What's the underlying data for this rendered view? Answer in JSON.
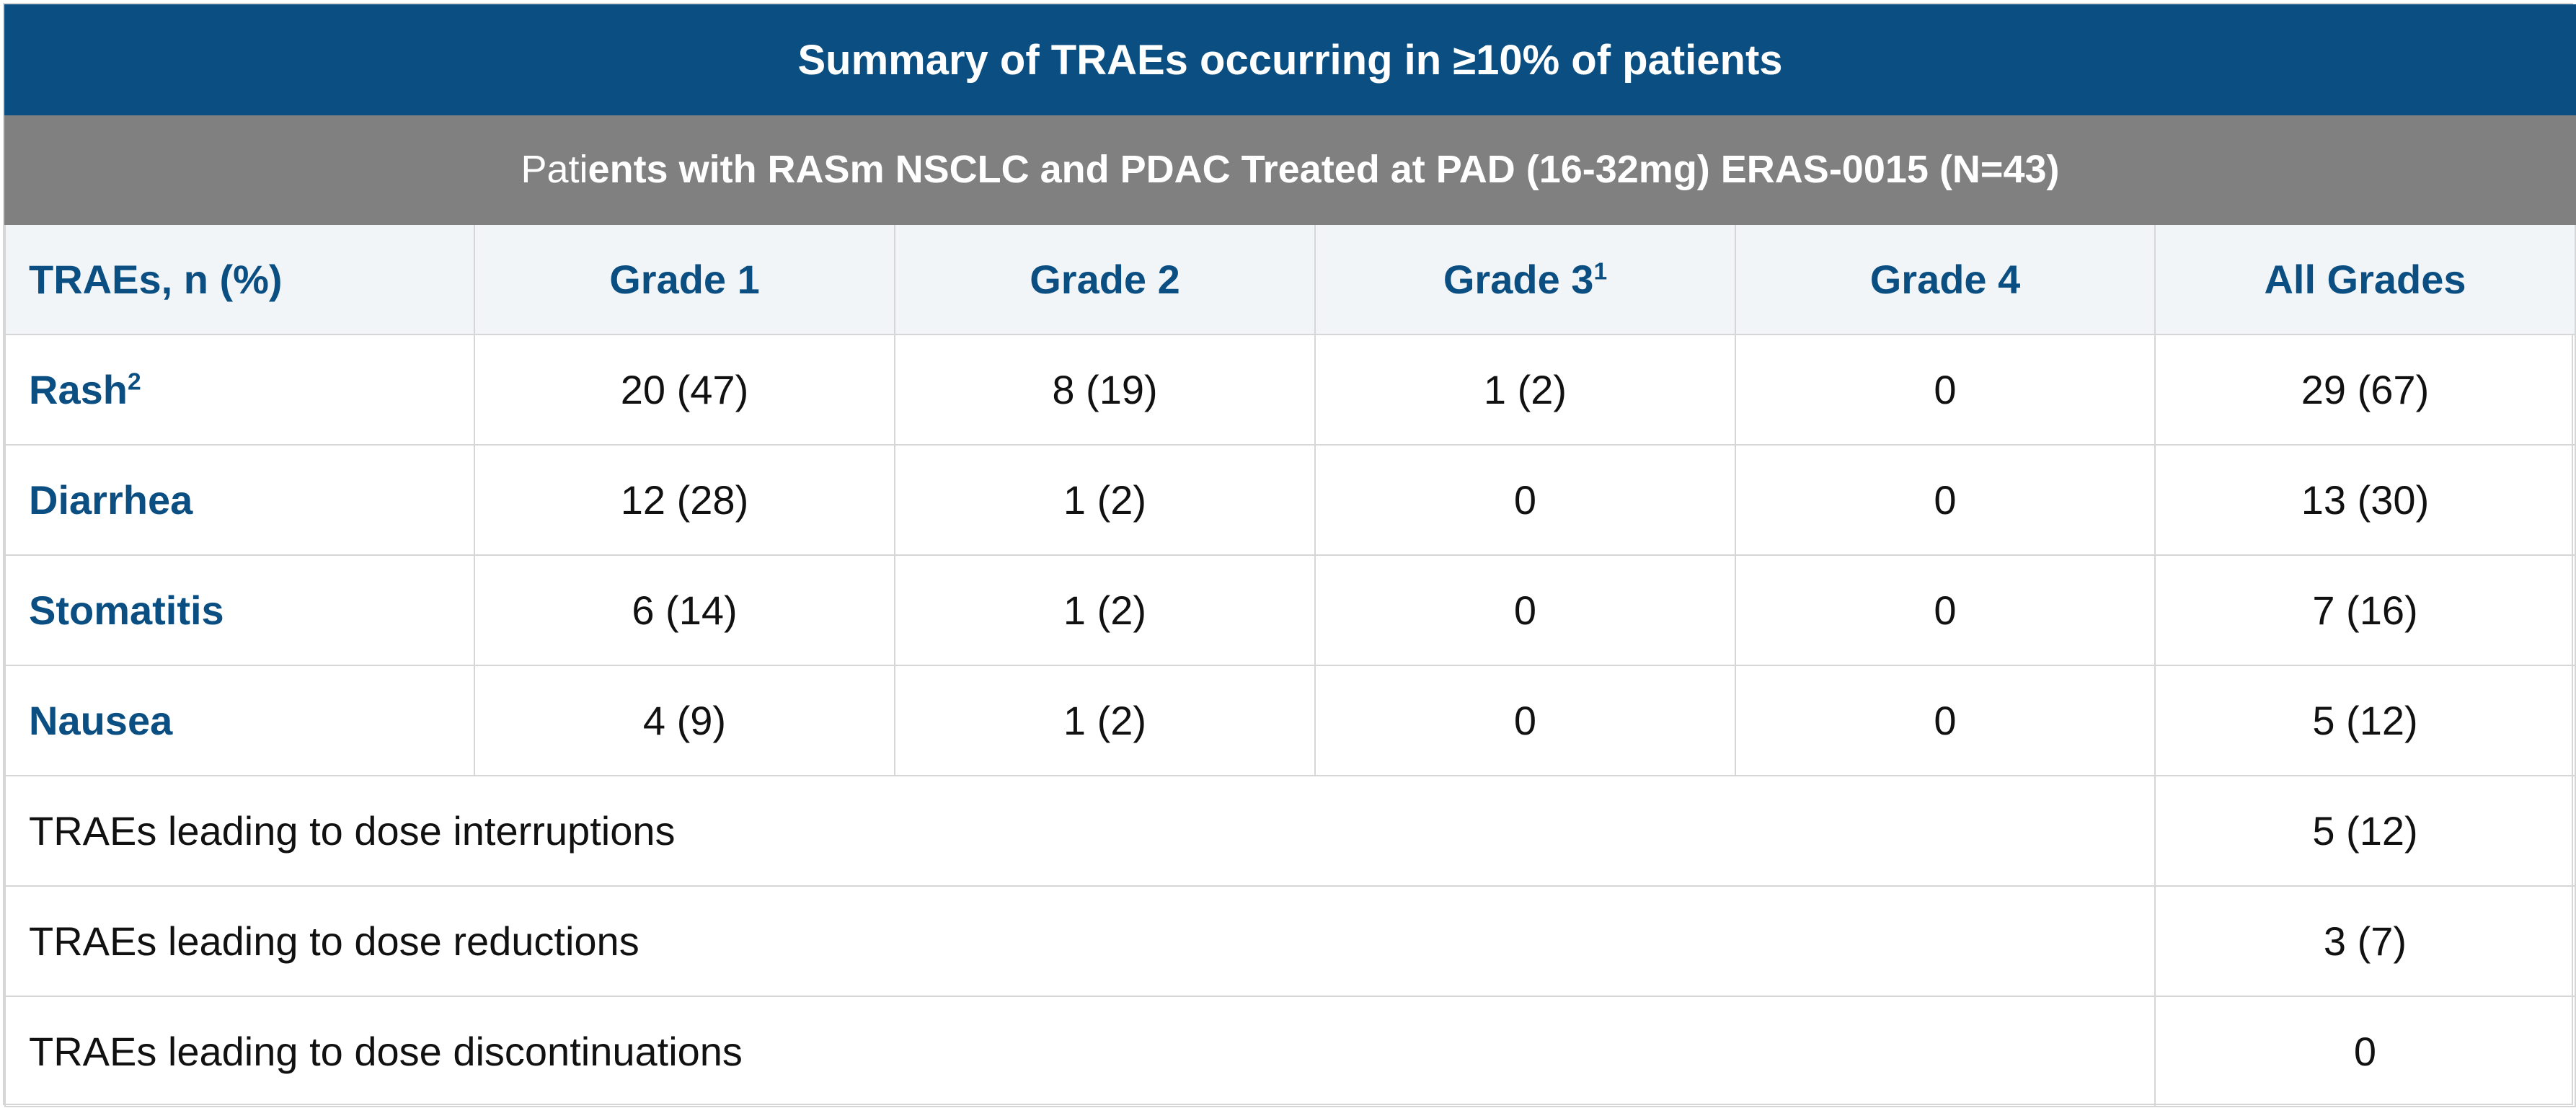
{
  "title": "Summary of TRAEs occurring in ≥10% of patients",
  "subtitle_lead": "Pati",
  "subtitle_rest": "ents with RASm NSCLC and PDAC Treated at PAD (16-32mg) ERAS-0015 (N=43)",
  "header": {
    "col0": "TRAEs, n (%)",
    "col1": "Grade 1",
    "col2": "Grade 2",
    "col3": "Grade 3",
    "col3_sup": "1",
    "col4": "Grade 4",
    "col5": "All Grades"
  },
  "rows": [
    {
      "label": "Rash",
      "sup": "2",
      "g1": "20 (47)",
      "g2": "8 (19)",
      "g3": "1 (2)",
      "g4": "0",
      "all": "29 (67)"
    },
    {
      "label": "Diarrhea",
      "sup": "",
      "g1": "12 (28)",
      "g2": "1 (2)",
      "g3": "0",
      "g4": "0",
      "all": "13 (30)"
    },
    {
      "label": "Stomatitis",
      "sup": "",
      "g1": "6 (14)",
      "g2": "1 (2)",
      "g3": "0",
      "g4": "0",
      "all": "7 (16)"
    },
    {
      "label": "Nausea",
      "sup": "",
      "g1": "4 (9)",
      "g2": "1 (2)",
      "g3": "0",
      "g4": "0",
      "all": "5 (12)"
    }
  ],
  "summary": [
    {
      "label": "TRAEs leading to dose interruptions",
      "value": "5 (12)"
    },
    {
      "label": "TRAEs leading to dose reductions",
      "value": "3 (7)"
    },
    {
      "label": "TRAEs leading to dose discontinuations",
      "value": "0"
    }
  ]
}
